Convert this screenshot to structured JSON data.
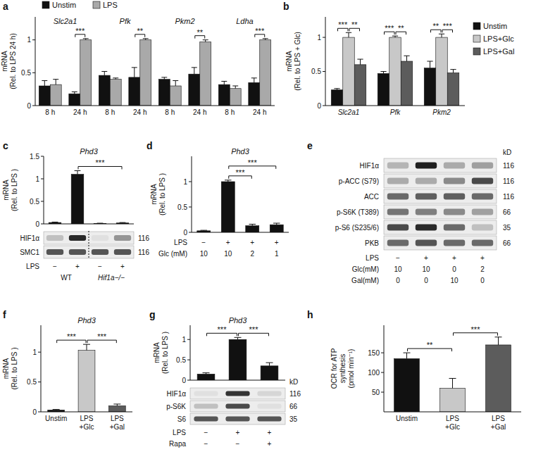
{
  "chart_data": [
    {
      "type": "bar",
      "title": "a",
      "y_label": "mRNA\n(Rel. to LPS 24 h)",
      "categories": [
        "8 h",
        "24 h",
        "8 h",
        "24 h",
        "8 h",
        "24 h",
        "8 h",
        "24 h"
      ],
      "group_labels": [
        "Slc2a1",
        "Pfk",
        "Pkm2",
        "Ldha"
      ],
      "series": [
        {
          "name": "Unstim",
          "color": "#111111",
          "values": [
            0.3,
            0.18,
            0.46,
            0.43,
            0.4,
            0.48,
            0.32,
            0.35
          ],
          "errors": [
            0.08,
            0.03,
            0.06,
            0.15,
            0.03,
            0.1,
            0.05,
            0.07
          ]
        },
        {
          "name": "LPS",
          "color": "#a9a9a9",
          "values": [
            0.32,
            1.0,
            0.4,
            1.0,
            0.3,
            0.97,
            0.26,
            1.0
          ],
          "errors": [
            0.08,
            0.02,
            0.02,
            0.02,
            0.08,
            0.03,
            0.04,
            0.02
          ]
        }
      ],
      "ylim": [
        0,
        1.35
      ],
      "yticks": [
        0,
        0.5,
        1
      ],
      "legend": "top",
      "significance": [
        {
          "label": "***",
          "from": [
            1,
            0
          ],
          "to": [
            1,
            1
          ]
        },
        {
          "label": "**",
          "from": [
            3,
            0
          ],
          "to": [
            3,
            1
          ]
        },
        {
          "label": "**",
          "from": [
            5,
            0
          ],
          "to": [
            5,
            1
          ]
        },
        {
          "label": "***",
          "from": [
            7,
            0
          ],
          "to": [
            7,
            1
          ]
        }
      ]
    },
    {
      "type": "bar",
      "title": "b",
      "y_label": "mRNA\n(Rel. to LPS + Glc)",
      "categories": [
        "Slc2a1",
        "Pfk",
        "Pkm2"
      ],
      "series": [
        {
          "name": "Unstim",
          "color": "#111111",
          "values": [
            0.23,
            0.47,
            0.55
          ],
          "errors": [
            0.02,
            0.03,
            0.1
          ]
        },
        {
          "name": "LPS+Glc",
          "color": "#c8c8c8",
          "values": [
            1.0,
            1.0,
            1.0
          ],
          "errors": [
            0.07,
            0.02,
            0.05
          ]
        },
        {
          "name": "LPS+Gal",
          "color": "#5c5c5c",
          "values": [
            0.6,
            0.65,
            0.48
          ],
          "errors": [
            0.08,
            0.08,
            0.05
          ]
        }
      ],
      "ylim": [
        0,
        1.3
      ],
      "yticks": [
        0,
        0.5,
        1
      ],
      "legend": "right",
      "significance": [
        {
          "label": "***",
          "from": [
            0,
            0
          ],
          "to": [
            0,
            1
          ]
        },
        {
          "label": "**",
          "from": [
            0,
            1
          ],
          "to": [
            0,
            2
          ]
        },
        {
          "label": "***",
          "from": [
            1,
            0
          ],
          "to": [
            1,
            1
          ]
        },
        {
          "label": "**",
          "from": [
            1,
            1
          ],
          "to": [
            1,
            2
          ]
        },
        {
          "label": "**",
          "from": [
            2,
            0
          ],
          "to": [
            2,
            1
          ]
        },
        {
          "label": "***",
          "from": [
            2,
            1
          ],
          "to": [
            2,
            2
          ]
        }
      ]
    },
    {
      "type": "bar",
      "title": "c",
      "subtitle": "Phd3",
      "y_label": "mRNA\n(Rel. to LPS )",
      "categories": [
        null,
        null,
        null,
        null
      ],
      "series": [
        {
          "color": "#111111",
          "values": [
            0.03,
            1.1,
            0.01,
            0.02
          ],
          "errors": [
            0.01,
            0.08,
            0.005,
            0.01
          ]
        }
      ],
      "ylim": [
        0,
        1.5
      ],
      "yticks": [
        0,
        0.5,
        1,
        1.5
      ],
      "significance": [
        {
          "label": "***",
          "from": [
            1,
            0
          ],
          "to": [
            3,
            0
          ]
        }
      ]
    },
    {
      "type": "blot",
      "rows": [
        {
          "name": "HIF1α",
          "kd": 116,
          "values": [
            0.2,
            0.9,
            0.05,
            0.4
          ]
        },
        {
          "name": "SMC1",
          "kd": 116,
          "values": [
            0.7,
            0.7,
            0.7,
            0.7
          ]
        }
      ],
      "conditions": [
        {
          "label": "LPS",
          "values": [
            "−",
            "+",
            "−",
            "+"
          ]
        }
      ],
      "groups": [
        "WT",
        "Hif1a−/−"
      ]
    },
    {
      "type": "bar",
      "title": "d",
      "subtitle": "Phd3",
      "y_label": "mRNA\n(Rel. to LPS )",
      "categories": [
        null,
        null,
        null,
        null
      ],
      "series": [
        {
          "color": "#111111",
          "values": [
            0.03,
            1.0,
            0.13,
            0.15
          ],
          "errors": [
            0.01,
            0.03,
            0.03,
            0.03
          ]
        }
      ],
      "ylim": [
        0,
        1.5
      ],
      "yticks": [
        0,
        0.5,
        1
      ],
      "conditions": [
        {
          "label": "LPS",
          "values": [
            "−",
            "+",
            "+",
            "+"
          ]
        },
        {
          "label": "Glc (mM)",
          "values": [
            10,
            10,
            2,
            1
          ]
        }
      ],
      "significance": [
        {
          "label": "***",
          "from": [
            1,
            0
          ],
          "to": [
            2,
            0
          ]
        },
        {
          "label": "***",
          "from": [
            1,
            0
          ],
          "to": [
            3,
            0
          ]
        }
      ]
    },
    {
      "type": "blot",
      "title": "e",
      "unit_label": "kD",
      "rows": [
        {
          "name": "HIF1α",
          "kd": 116,
          "values": [
            0.25,
            0.95,
            0.3,
            0.35
          ]
        },
        {
          "name": "p-ACC (S79)",
          "kd": 116,
          "values": [
            0.3,
            0.3,
            0.45,
            0.75
          ]
        },
        {
          "name": "ACC",
          "kd": 116,
          "values": [
            0.6,
            0.65,
            0.65,
            0.6
          ]
        },
        {
          "name": "p-S6K (T389)",
          "kd": 66,
          "values": [
            0.55,
            0.5,
            0.45,
            0.35
          ]
        },
        {
          "name": "p-S6 (S235/6)",
          "kd": 35,
          "values": [
            0.75,
            0.9,
            0.6,
            0.2
          ]
        },
        {
          "name": "PKB",
          "kd": 66,
          "values": [
            0.6,
            0.7,
            0.6,
            0.6
          ]
        }
      ],
      "conditions": [
        {
          "label": "LPS",
          "values": [
            "−",
            "+",
            "+",
            "+"
          ]
        },
        {
          "label": "Glc(mM)",
          "values": [
            10,
            10,
            0,
            2
          ]
        },
        {
          "label": "Gal(mM)",
          "values": [
            0,
            0,
            10,
            0
          ]
        }
      ]
    },
    {
      "type": "bar",
      "title": "f",
      "subtitle": "Phd3",
      "y_label": "mRNA\n(Rel. to LPS )",
      "categories": [
        "Unstim",
        "LPS\n+Glc",
        "LPS\n+Gal"
      ],
      "series": [
        {
          "colors": [
            "#111111",
            "#c8c8c8",
            "#5c5c5c"
          ],
          "values": [
            0.03,
            1.03,
            0.1
          ],
          "errors": [
            0.01,
            0.1,
            0.03
          ]
        }
      ],
      "ylim": [
        0,
        1.45
      ],
      "yticks": [
        0,
        0.5,
        1
      ],
      "significance": [
        {
          "label": "***",
          "from": [
            0,
            0
          ],
          "to": [
            1,
            0
          ]
        },
        {
          "label": "***",
          "from": [
            1,
            0
          ],
          "to": [
            2,
            0
          ]
        }
      ]
    },
    {
      "type": "bar",
      "title": "g",
      "subtitle": "Phd3",
      "y_label": "mRNA\n(Rel. to LPS )",
      "categories": [
        null,
        null,
        null
      ],
      "series": [
        {
          "color": "#111111",
          "values": [
            0.15,
            1.0,
            0.35
          ],
          "errors": [
            0.03,
            0.05,
            0.08
          ]
        }
      ],
      "ylim": [
        0,
        1.35
      ],
      "yticks": [
        0,
        0.5,
        1
      ],
      "significance": [
        {
          "label": "***",
          "from": [
            0,
            0
          ],
          "to": [
            1,
            0
          ]
        },
        {
          "label": "***",
          "from": [
            1,
            0
          ],
          "to": [
            2,
            0
          ]
        }
      ]
    },
    {
      "type": "blot",
      "unit_label": "kD",
      "rows": [
        {
          "name": "HIF1α",
          "kd": 116,
          "values": [
            0.05,
            0.85,
            0.1
          ]
        },
        {
          "name": "p-S6K",
          "kd": 66,
          "values": [
            0.2,
            0.75,
            0.05
          ]
        },
        {
          "name": "S6",
          "kd": 35,
          "values": [
            0.7,
            0.7,
            0.7
          ]
        }
      ],
      "conditions": [
        {
          "label": "LPS",
          "values": [
            "−",
            "+",
            "+"
          ]
        },
        {
          "label": "Rapa",
          "values": [
            "−",
            "−",
            "+"
          ]
        }
      ]
    },
    {
      "type": "bar",
      "title": "h",
      "y_label": "OCR for ATP\nsynthesis\n(pmol min⁻¹)",
      "categories": [
        "Unstim",
        "LPS\n+Glc",
        "LPS\n+Gal"
      ],
      "series": [
        {
          "colors": [
            "#111111",
            "#c8c8c8",
            "#5c5c5c"
          ],
          "values": [
            135,
            60,
            170
          ],
          "errors": [
            15,
            25,
            20
          ]
        }
      ],
      "ylim": [
        0,
        220
      ],
      "yticks": [
        50,
        100,
        150
      ],
      "significance": [
        {
          "label": "**",
          "from": [
            0,
            0
          ],
          "to": [
            1,
            0
          ]
        },
        {
          "label": "***",
          "from": [
            1,
            0
          ],
          "to": [
            2,
            0
          ]
        }
      ]
    }
  ]
}
